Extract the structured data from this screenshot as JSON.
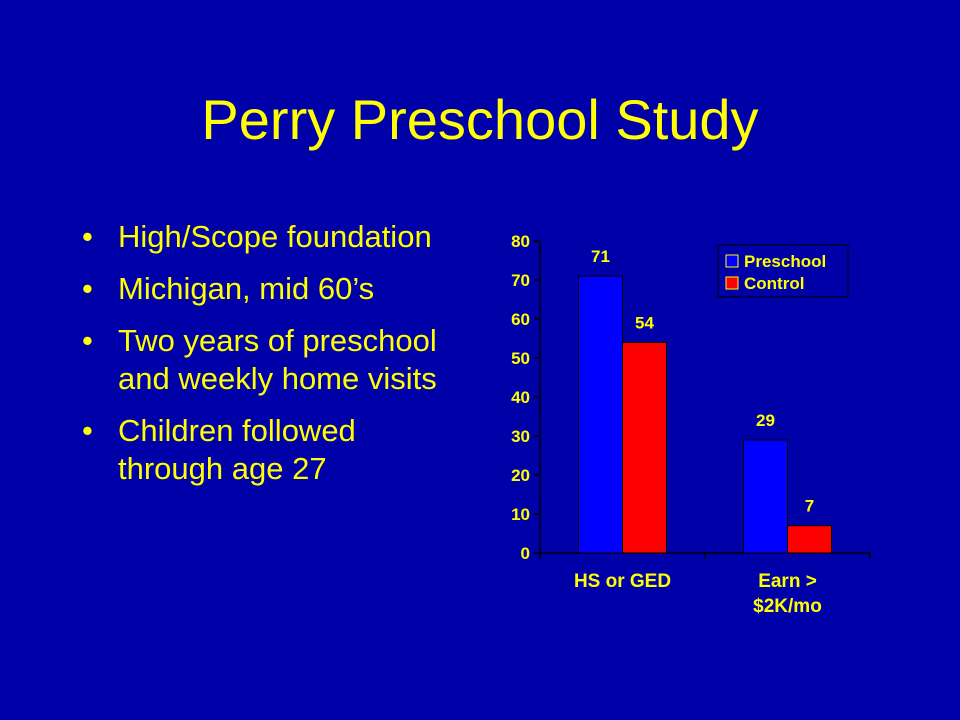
{
  "slide": {
    "title": "Perry Preschool Study",
    "bullet_glyph": "•",
    "bullets": [
      "High/Scope foundation",
      "Michigan, mid 60’s",
      "Two years of preschool and weekly home visits",
      "Children followed through age 27"
    ]
  },
  "colors": {
    "background": "#0000a8",
    "text": "#ffff00",
    "preschool": "#0000ff",
    "control": "#ff0000"
  },
  "chart_data": {
    "type": "bar",
    "categories": [
      [
        "HS or GED"
      ],
      [
        "Earn >",
        "$2K/mo"
      ]
    ],
    "series": [
      {
        "name": "Preschool",
        "values": [
          71,
          29
        ],
        "color": "#0000ff"
      },
      {
        "name": "Control",
        "values": [
          54,
          7
        ],
        "color": "#ff0000"
      }
    ],
    "ylim": [
      0,
      80
    ],
    "yticks": [
      0,
      10,
      20,
      30,
      40,
      50,
      60,
      70,
      80
    ],
    "data_labels": true,
    "legend_position": "top-right",
    "grid": false
  }
}
